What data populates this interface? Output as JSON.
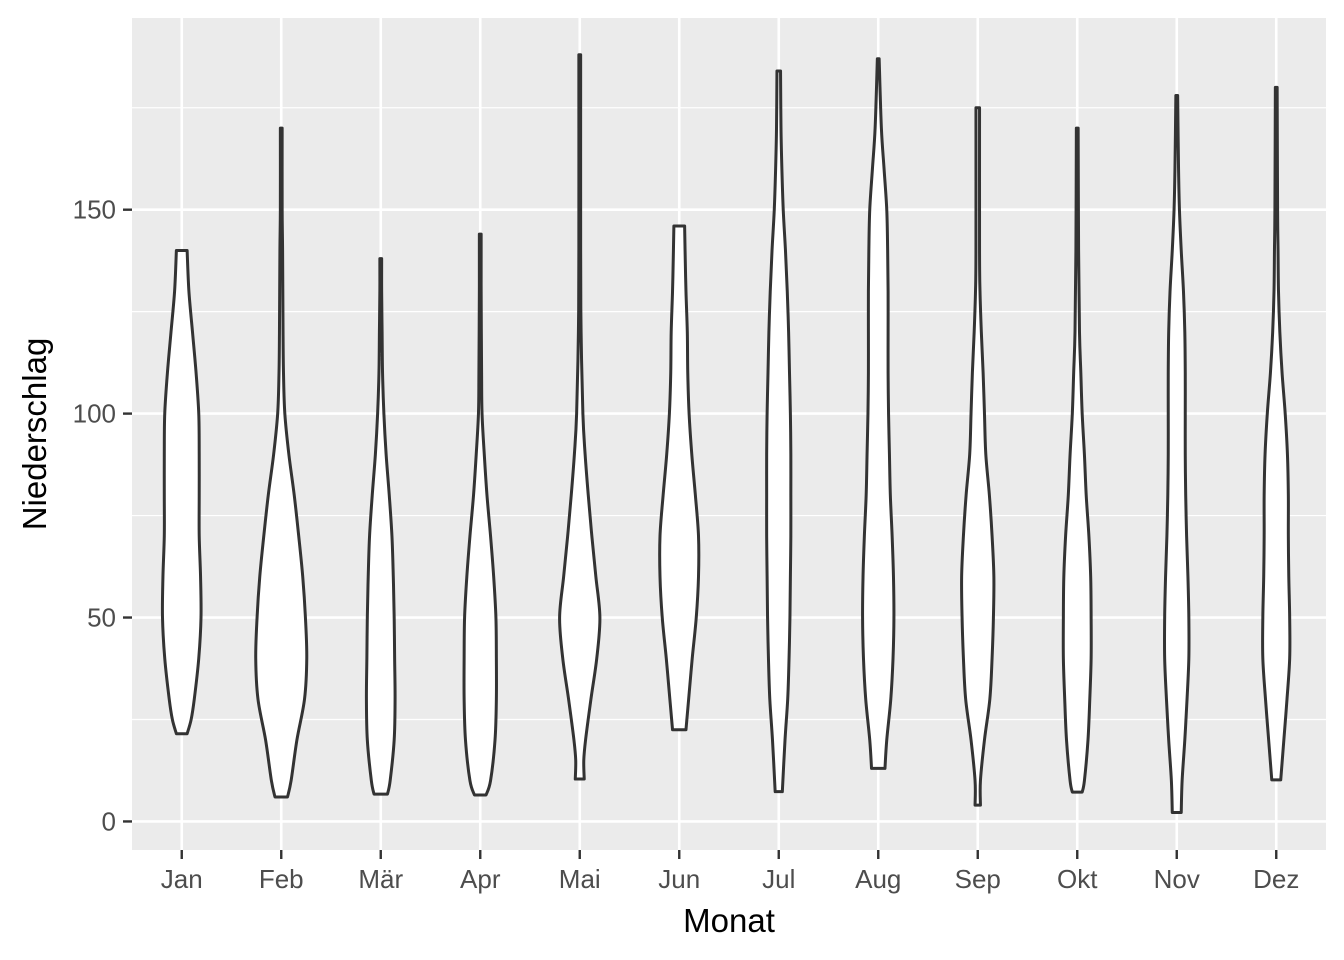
{
  "chart_data": {
    "type": "violin",
    "xlabel": "Monat",
    "ylabel": "Niederschlag",
    "categories": [
      "Jan",
      "Feb",
      "Mär",
      "Apr",
      "Mai",
      "Jun",
      "Jul",
      "Aug",
      "Sep",
      "Okt",
      "Nov",
      "Dez"
    ],
    "yticks": [
      0,
      50,
      100,
      150
    ],
    "ylim": [
      -7,
      197
    ],
    "grid": true,
    "legend": "none",
    "colors": {
      "panel": "#ebebeb",
      "grid": "#ffffff",
      "fill": "#ffffff",
      "outline": "#333333"
    },
    "violins": [
      {
        "month": "Jan",
        "min": 21.5,
        "max": 140,
        "profile": [
          [
            21.5,
            0.12
          ],
          [
            25,
            0.21
          ],
          [
            30,
            0.28
          ],
          [
            40,
            0.38
          ],
          [
            50,
            0.43
          ],
          [
            60,
            0.42
          ],
          [
            70,
            0.39
          ],
          [
            80,
            0.39
          ],
          [
            90,
            0.39
          ],
          [
            100,
            0.38
          ],
          [
            110,
            0.32
          ],
          [
            120,
            0.24
          ],
          [
            130,
            0.16
          ],
          [
            140,
            0.12
          ]
        ]
      },
      {
        "month": "Feb",
        "min": 6,
        "max": 170,
        "profile": [
          [
            6,
            0.14
          ],
          [
            10,
            0.22
          ],
          [
            20,
            0.35
          ],
          [
            30,
            0.52
          ],
          [
            40,
            0.57
          ],
          [
            50,
            0.54
          ],
          [
            60,
            0.48
          ],
          [
            70,
            0.39
          ],
          [
            80,
            0.29
          ],
          [
            90,
            0.17
          ],
          [
            100,
            0.08
          ],
          [
            110,
            0.05
          ],
          [
            120,
            0.04
          ],
          [
            140,
            0.03
          ],
          [
            150,
            0.02
          ],
          [
            170,
            0.02
          ]
        ]
      },
      {
        "month": "Mär",
        "min": 6.7,
        "max": 138,
        "profile": [
          [
            6.7,
            0.15
          ],
          [
            10,
            0.21
          ],
          [
            20,
            0.3
          ],
          [
            30,
            0.32
          ],
          [
            40,
            0.31
          ],
          [
            50,
            0.3
          ],
          [
            60,
            0.28
          ],
          [
            70,
            0.25
          ],
          [
            80,
            0.19
          ],
          [
            90,
            0.12
          ],
          [
            100,
            0.07
          ],
          [
            110,
            0.04
          ],
          [
            120,
            0.03
          ],
          [
            130,
            0.02
          ],
          [
            138,
            0.02
          ]
        ]
      },
      {
        "month": "Apr",
        "min": 6.5,
        "max": 144,
        "profile": [
          [
            6.5,
            0.13
          ],
          [
            10,
            0.23
          ],
          [
            20,
            0.33
          ],
          [
            30,
            0.36
          ],
          [
            40,
            0.36
          ],
          [
            50,
            0.35
          ],
          [
            60,
            0.3
          ],
          [
            70,
            0.23
          ],
          [
            80,
            0.15
          ],
          [
            90,
            0.09
          ],
          [
            100,
            0.04
          ],
          [
            110,
            0.03
          ],
          [
            130,
            0.02
          ],
          [
            144,
            0.02
          ]
        ]
      },
      {
        "month": "Mai",
        "min": 10.4,
        "max": 188,
        "profile": [
          [
            10.4,
            0.1
          ],
          [
            15,
            0.09
          ],
          [
            20,
            0.13
          ],
          [
            30,
            0.25
          ],
          [
            40,
            0.38
          ],
          [
            50,
            0.45
          ],
          [
            60,
            0.36
          ],
          [
            70,
            0.27
          ],
          [
            80,
            0.19
          ],
          [
            90,
            0.12
          ],
          [
            100,
            0.07
          ],
          [
            120,
            0.03
          ],
          [
            140,
            0.02
          ],
          [
            188,
            0.02
          ]
        ]
      },
      {
        "month": "Jun",
        "min": 22.5,
        "max": 146,
        "profile": [
          [
            22.5,
            0.15
          ],
          [
            30,
            0.21
          ],
          [
            40,
            0.29
          ],
          [
            50,
            0.38
          ],
          [
            60,
            0.43
          ],
          [
            70,
            0.43
          ],
          [
            80,
            0.36
          ],
          [
            90,
            0.28
          ],
          [
            100,
            0.22
          ],
          [
            110,
            0.19
          ],
          [
            120,
            0.18
          ],
          [
            130,
            0.15
          ],
          [
            140,
            0.13
          ],
          [
            146,
            0.12
          ]
        ]
      },
      {
        "month": "Jul",
        "min": 7.3,
        "max": 184,
        "profile": [
          [
            7.3,
            0.08
          ],
          [
            20,
            0.14
          ],
          [
            30,
            0.2
          ],
          [
            40,
            0.23
          ],
          [
            50,
            0.25
          ],
          [
            60,
            0.26
          ],
          [
            70,
            0.27
          ],
          [
            80,
            0.27
          ],
          [
            90,
            0.27
          ],
          [
            100,
            0.26
          ],
          [
            110,
            0.24
          ],
          [
            120,
            0.22
          ],
          [
            130,
            0.19
          ],
          [
            140,
            0.15
          ],
          [
            150,
            0.1
          ],
          [
            160,
            0.07
          ],
          [
            170,
            0.05
          ],
          [
            184,
            0.04
          ]
        ]
      },
      {
        "month": "Aug",
        "min": 13,
        "max": 187,
        "profile": [
          [
            13,
            0.15
          ],
          [
            20,
            0.19
          ],
          [
            30,
            0.28
          ],
          [
            40,
            0.33
          ],
          [
            50,
            0.35
          ],
          [
            60,
            0.34
          ],
          [
            70,
            0.31
          ],
          [
            80,
            0.27
          ],
          [
            90,
            0.25
          ],
          [
            100,
            0.23
          ],
          [
            110,
            0.22
          ],
          [
            120,
            0.22
          ],
          [
            130,
            0.22
          ],
          [
            140,
            0.21
          ],
          [
            150,
            0.19
          ],
          [
            160,
            0.13
          ],
          [
            170,
            0.07
          ],
          [
            187,
            0.02
          ]
        ]
      },
      {
        "month": "Sep",
        "min": 4,
        "max": 175,
        "profile": [
          [
            4,
            0.06
          ],
          [
            10,
            0.06
          ],
          [
            20,
            0.15
          ],
          [
            30,
            0.27
          ],
          [
            40,
            0.32
          ],
          [
            50,
            0.35
          ],
          [
            60,
            0.36
          ],
          [
            70,
            0.32
          ],
          [
            80,
            0.26
          ],
          [
            90,
            0.18
          ],
          [
            100,
            0.15
          ],
          [
            110,
            0.12
          ],
          [
            120,
            0.08
          ],
          [
            130,
            0.05
          ],
          [
            140,
            0.04
          ],
          [
            175,
            0.04
          ]
        ]
      },
      {
        "month": "Okt",
        "min": 7.2,
        "max": 170,
        "profile": [
          [
            7.2,
            0.11
          ],
          [
            10,
            0.16
          ],
          [
            20,
            0.24
          ],
          [
            30,
            0.28
          ],
          [
            40,
            0.31
          ],
          [
            50,
            0.31
          ],
          [
            60,
            0.3
          ],
          [
            70,
            0.26
          ],
          [
            80,
            0.2
          ],
          [
            90,
            0.16
          ],
          [
            100,
            0.11
          ],
          [
            110,
            0.08
          ],
          [
            120,
            0.05
          ],
          [
            140,
            0.03
          ],
          [
            170,
            0.02
          ]
        ]
      },
      {
        "month": "Nov",
        "min": 2.2,
        "max": 178,
        "profile": [
          [
            2.2,
            0.1
          ],
          [
            10,
            0.12
          ],
          [
            20,
            0.18
          ],
          [
            30,
            0.23
          ],
          [
            40,
            0.27
          ],
          [
            50,
            0.27
          ],
          [
            60,
            0.25
          ],
          [
            70,
            0.22
          ],
          [
            80,
            0.2
          ],
          [
            90,
            0.19
          ],
          [
            100,
            0.19
          ],
          [
            110,
            0.19
          ],
          [
            120,
            0.18
          ],
          [
            130,
            0.15
          ],
          [
            140,
            0.1
          ],
          [
            150,
            0.06
          ],
          [
            160,
            0.04
          ],
          [
            178,
            0.02
          ]
        ]
      },
      {
        "month": "Dez",
        "min": 10.2,
        "max": 180,
        "profile": [
          [
            10.2,
            0.1
          ],
          [
            20,
            0.17
          ],
          [
            30,
            0.24
          ],
          [
            40,
            0.3
          ],
          [
            50,
            0.3
          ],
          [
            60,
            0.28
          ],
          [
            70,
            0.27
          ],
          [
            80,
            0.27
          ],
          [
            90,
            0.25
          ],
          [
            100,
            0.2
          ],
          [
            110,
            0.13
          ],
          [
            120,
            0.08
          ],
          [
            130,
            0.05
          ],
          [
            140,
            0.04
          ],
          [
            150,
            0.03
          ],
          [
            180,
            0.02
          ]
        ]
      }
    ]
  }
}
